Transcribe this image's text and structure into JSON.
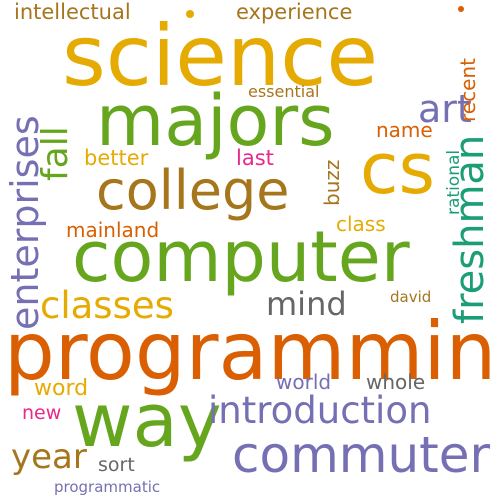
{
  "palette": {
    "orange": "#d95f02",
    "gold": "#e6ab02",
    "green": "#66a61e",
    "purple": "#7570b3",
    "brown": "#a6761d",
    "gray": "#666666",
    "teal": "#1b9e77",
    "pink": "#e7298a"
  },
  "words": [
    {
      "id": "science",
      "text": "science",
      "color": "#e6ab02"
    },
    {
      "id": "programming",
      "text": "programming",
      "color": "#d95f02"
    },
    {
      "id": "computer",
      "text": "computer",
      "color": "#66a61e"
    },
    {
      "id": "majors",
      "text": "majors",
      "color": "#66a61e"
    },
    {
      "id": "cs",
      "text": "cs",
      "color": "#e6ab02"
    },
    {
      "id": "college",
      "text": "college",
      "color": "#a6761d"
    },
    {
      "id": "way",
      "text": "way",
      "color": "#66a61e"
    },
    {
      "id": "commuter",
      "text": "commuter",
      "color": "#7570b3"
    },
    {
      "id": "introduction",
      "text": "introduction",
      "color": "#7570b3"
    },
    {
      "id": "classes",
      "text": "classes",
      "color": "#e6ab02"
    },
    {
      "id": "enterprises",
      "text": "enterprises",
      "color": "#7570b3"
    },
    {
      "id": "freshman",
      "text": "freshman",
      "color": "#1b9e77"
    },
    {
      "id": "fall",
      "text": "fall",
      "color": "#66a61e"
    },
    {
      "id": "art",
      "text": "art",
      "color": "#7570b3"
    },
    {
      "id": "mind",
      "text": "mind",
      "color": "#666666"
    },
    {
      "id": "year",
      "text": "year",
      "color": "#a6761d"
    },
    {
      "id": "experience",
      "text": "experience",
      "color": "#a6761d"
    },
    {
      "id": "intellectual",
      "text": "intellectual",
      "color": "#a6761d"
    },
    {
      "id": "recent",
      "text": "recent",
      "color": "#d95f02"
    },
    {
      "id": "name",
      "text": "name",
      "color": "#d95f02"
    },
    {
      "id": "better",
      "text": "better",
      "color": "#e6ab02"
    },
    {
      "id": "last",
      "text": "last",
      "color": "#e7298a"
    },
    {
      "id": "buzz",
      "text": "buzz",
      "color": "#a6761d"
    },
    {
      "id": "rational",
      "text": "rational",
      "color": "#1b9e77"
    },
    {
      "id": "essential",
      "text": "essential",
      "color": "#a6761d"
    },
    {
      "id": "mainland",
      "text": "mainland",
      "color": "#d95f02"
    },
    {
      "id": "class",
      "text": "class",
      "color": "#e6ab02"
    },
    {
      "id": "david",
      "text": "david",
      "color": "#a6761d"
    },
    {
      "id": "world",
      "text": "world",
      "color": "#7570b3"
    },
    {
      "id": "whole",
      "text": "whole",
      "color": "#666666"
    },
    {
      "id": "word",
      "text": "word",
      "color": "#e6ab02"
    },
    {
      "id": "new",
      "text": "new",
      "color": "#e7298a"
    },
    {
      "id": "sort",
      "text": "sort",
      "color": "#666666"
    },
    {
      "id": "programmatic",
      "text": "programmatic",
      "color": "#7570b3"
    }
  ]
}
